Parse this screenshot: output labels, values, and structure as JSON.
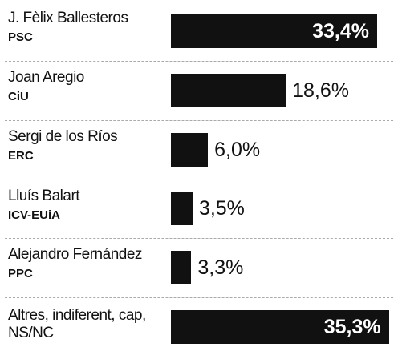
{
  "chart_data": {
    "type": "bar",
    "categories": [
      "J. Fèlix Ballesteros",
      "Joan Aregio",
      "Sergi de los Ríos",
      "Lluís Balart",
      "Alejandro Fernández",
      "Altres, indiferent, cap, NS/NC"
    ],
    "parties": [
      "PSC",
      "CiU",
      "ERC",
      "ICV-EUiA",
      "PPC",
      null
    ],
    "values": [
      33.4,
      18.6,
      6.0,
      3.5,
      3.3,
      35.3
    ],
    "value_labels": [
      "33,4%",
      "18,6%",
      "6,0%",
      "3,5%",
      "3,3%",
      "35,3%"
    ],
    "color": "#111111",
    "xlim": [
      0,
      36
    ]
  }
}
